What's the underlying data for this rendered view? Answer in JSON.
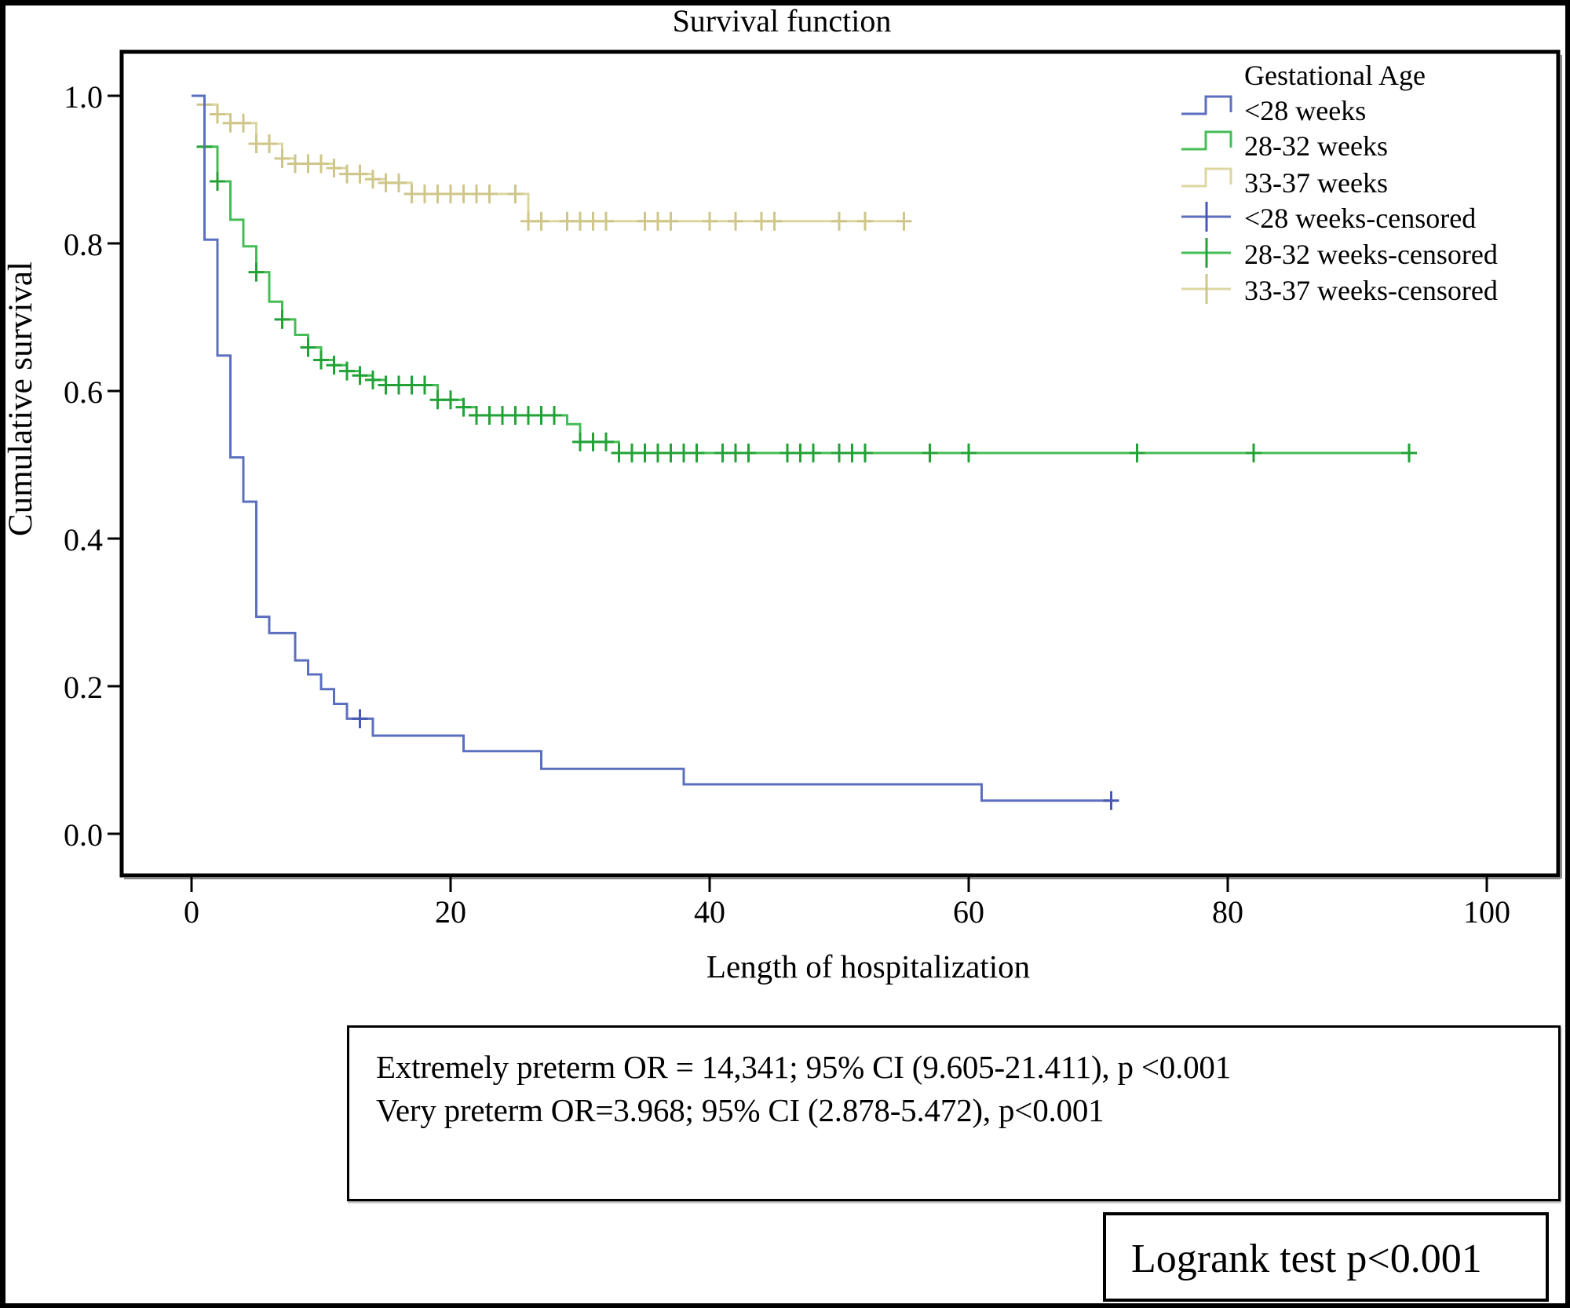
{
  "chart_data": {
    "type": "line",
    "subtype": "kaplan-meier-step",
    "title": "Survival function",
    "xlabel": "Length of hospitalization",
    "ylabel": "Cumulative survival",
    "xlim": [
      -3,
      103
    ],
    "ylim": [
      -0.06,
      1.1
    ],
    "xticks": [
      0,
      20,
      40,
      60,
      80,
      100
    ],
    "xtick_labels": [
      "0",
      "20",
      "40",
      "60",
      "80",
      "100"
    ],
    "yticks": [
      0.0,
      0.2,
      0.4,
      0.6,
      0.8,
      1.0
    ],
    "ytick_labels": [
      "0.0",
      "0.2",
      "0.4",
      "0.6",
      "0.8",
      "1.0"
    ],
    "grid": false,
    "legend": {
      "title": "Gestational Age",
      "placement": "top-right",
      "entries": [
        {
          "label": "<28 weeks",
          "kind": "step",
          "series": 0
        },
        {
          "label": "28-32 weeks",
          "kind": "step",
          "series": 1
        },
        {
          "label": "33-37 weeks",
          "kind": "step",
          "series": 2
        },
        {
          "label": "<28 weeks-censored",
          "kind": "censor",
          "series": 0
        },
        {
          "label": "28-32 weeks-censored",
          "kind": "censor",
          "series": 1
        },
        {
          "label": "33-37 weeks-censored",
          "kind": "censor",
          "series": 2
        }
      ]
    },
    "series": [
      {
        "name": "<28 weeks",
        "color": "#5b6fbf",
        "censor_color": "#4459b0",
        "steps": [
          [
            0,
            1.0
          ],
          [
            1,
            0.805
          ],
          [
            2,
            0.648
          ],
          [
            3,
            0.51
          ],
          [
            4,
            0.45
          ],
          [
            5,
            0.294
          ],
          [
            6,
            0.272
          ],
          [
            8,
            0.235
          ],
          [
            9,
            0.216
          ],
          [
            10,
            0.196
          ],
          [
            11,
            0.176
          ],
          [
            12,
            0.156
          ],
          [
            14,
            0.133
          ],
          [
            21,
            0.112
          ],
          [
            27,
            0.088
          ],
          [
            38,
            0.067
          ],
          [
            61,
            0.045
          ]
        ],
        "end": 71,
        "censored": [
          13,
          71
        ]
      },
      {
        "name": "28-32 weeks",
        "color": "#45bd55",
        "censor_color": "#22a236",
        "steps": [
          [
            0,
            1.0
          ],
          [
            1,
            0.931
          ],
          [
            2,
            0.884
          ],
          [
            3,
            0.832
          ],
          [
            4,
            0.796
          ],
          [
            5,
            0.761
          ],
          [
            6,
            0.721
          ],
          [
            7,
            0.697
          ],
          [
            8,
            0.676
          ],
          [
            9,
            0.659
          ],
          [
            10,
            0.642
          ],
          [
            11,
            0.635
          ],
          [
            12,
            0.627
          ],
          [
            13,
            0.621
          ],
          [
            14,
            0.615
          ],
          [
            15,
            0.608
          ],
          [
            19,
            0.588
          ],
          [
            21,
            0.578
          ],
          [
            22,
            0.567
          ],
          [
            29,
            0.555
          ],
          [
            30,
            0.531
          ],
          [
            33,
            0.516
          ]
        ],
        "end": 94,
        "censored": [
          1,
          2,
          5,
          7,
          9,
          10,
          11,
          12,
          13,
          14,
          15,
          16,
          17,
          18,
          19,
          20,
          21,
          22,
          23,
          24,
          25,
          26,
          27,
          28,
          30,
          31,
          32,
          33,
          34,
          35,
          36,
          37,
          38,
          39,
          41,
          42,
          43,
          46,
          47,
          48,
          50,
          51,
          52,
          57,
          60,
          73,
          82,
          94
        ]
      },
      {
        "name": "33-37 weeks",
        "color": "#dcd6a0",
        "censor_color": "#cfc68a",
        "steps": [
          [
            0,
            1.0
          ],
          [
            1,
            0.988
          ],
          [
            2,
            0.975
          ],
          [
            3,
            0.963
          ],
          [
            5,
            0.935
          ],
          [
            7,
            0.915
          ],
          [
            8,
            0.908
          ],
          [
            11,
            0.902
          ],
          [
            12,
            0.894
          ],
          [
            14,
            0.887
          ],
          [
            15,
            0.882
          ],
          [
            17,
            0.867
          ],
          [
            26,
            0.83
          ]
        ],
        "end": 55,
        "censored": [
          1,
          2,
          3,
          4,
          5,
          6,
          7,
          8,
          9,
          10,
          11,
          12,
          13,
          14,
          15,
          16,
          17,
          18,
          19,
          20,
          21,
          22,
          23,
          25,
          26,
          27,
          29,
          30,
          31,
          32,
          35,
          36,
          37,
          40,
          42,
          44,
          45,
          50,
          52,
          55
        ]
      }
    ],
    "annotations": {
      "stats_lines": [
        "Extremely preterm OR = 14,341; 95% CI (9.605-21.411), p <0.001",
        "Very preterm OR=3.968; 95% CI (2.878-5.472), p<0.001"
      ],
      "logrank": "Logrank test p<0.001"
    }
  }
}
